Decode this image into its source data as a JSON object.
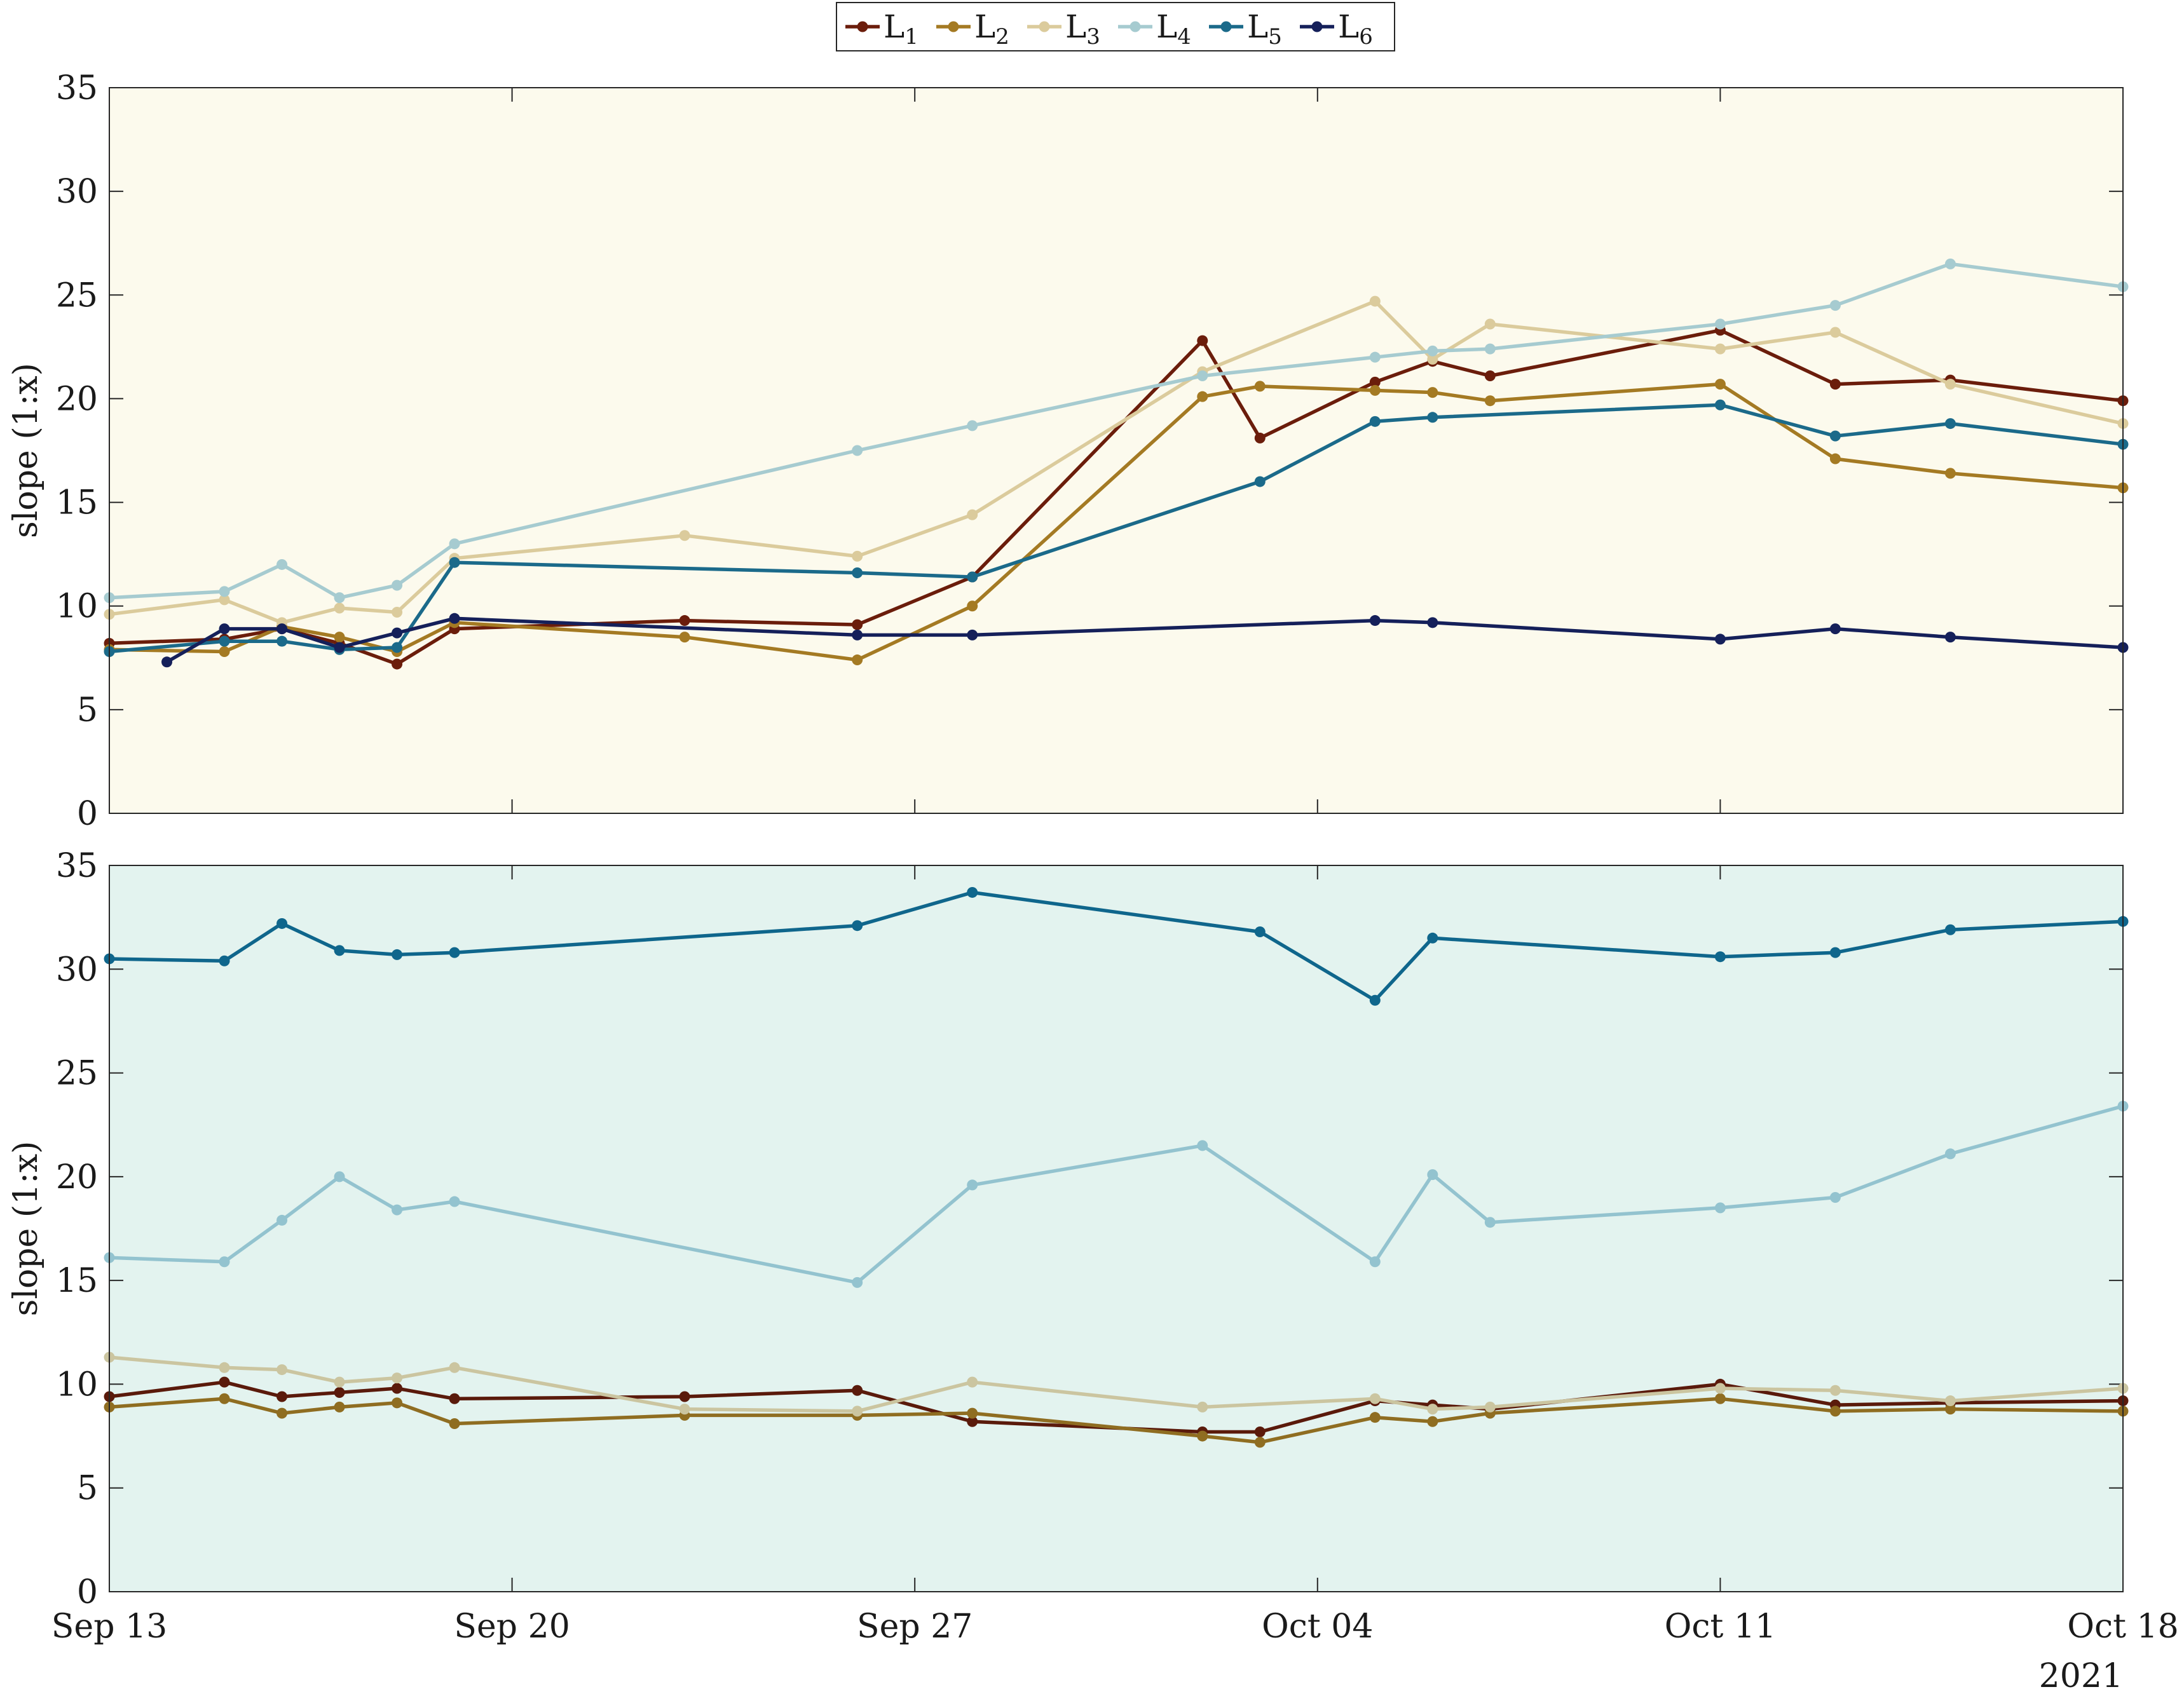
{
  "legend": {
    "entries": [
      {
        "label": "L",
        "sub": "1",
        "color": "#6b1d0b"
      },
      {
        "label": "L",
        "sub": "2",
        "color": "#a47a23"
      },
      {
        "label": "L",
        "sub": "3",
        "color": "#dbcb9c"
      },
      {
        "label": "L",
        "sub": "4",
        "color": "#a6cbd0"
      },
      {
        "label": "L",
        "sub": "5",
        "color": "#1b6a8a"
      },
      {
        "label": "L",
        "sub": "6",
        "color": "#15205a"
      }
    ]
  },
  "chart_data": [
    {
      "type": "line",
      "title": "",
      "xlabel": "",
      "ylabel": "slope (1:x)",
      "background": "#fcfaed",
      "xlim": [
        "2021-09-13",
        "2021-10-18"
      ],
      "ylim": [
        0,
        35
      ],
      "yticks": [
        0,
        5,
        10,
        15,
        20,
        25,
        30,
        35
      ],
      "grid": false,
      "legend_position": "top-center",
      "series": [
        {
          "name": "L1",
          "color": "#6b1d0b",
          "points": [
            [
              "2021-09-13",
              8.2
            ],
            [
              "2021-09-15",
              8.4
            ],
            [
              "2021-09-16",
              8.9
            ],
            [
              "2021-09-17",
              8.2
            ],
            [
              "2021-09-18",
              7.2
            ],
            [
              "2021-09-19",
              8.9
            ],
            [
              "2021-09-23",
              9.3
            ],
            [
              "2021-09-26",
              9.1
            ],
            [
              "2021-09-28",
              11.4
            ],
            [
              "2021-10-02",
              22.8
            ],
            [
              "2021-10-03",
              18.1
            ],
            [
              "2021-10-05",
              20.8
            ],
            [
              "2021-10-06",
              21.8
            ],
            [
              "2021-10-07",
              21.1
            ],
            [
              "2021-10-11",
              23.3
            ],
            [
              "2021-10-13",
              20.7
            ],
            [
              "2021-10-15",
              20.9
            ],
            [
              "2021-10-18",
              19.9
            ]
          ]
        },
        {
          "name": "L2",
          "color": "#a47a23",
          "points": [
            [
              "2021-09-13",
              7.9
            ],
            [
              "2021-09-15",
              7.8
            ],
            [
              "2021-09-16",
              9.0
            ],
            [
              "2021-09-17",
              8.5
            ],
            [
              "2021-09-18",
              7.8
            ],
            [
              "2021-09-19",
              9.2
            ],
            [
              "2021-09-23",
              8.5
            ],
            [
              "2021-09-26",
              7.4
            ],
            [
              "2021-09-28",
              10.0
            ],
            [
              "2021-10-02",
              20.1
            ],
            [
              "2021-10-03",
              20.6
            ],
            [
              "2021-10-05",
              20.4
            ],
            [
              "2021-10-06",
              20.3
            ],
            [
              "2021-10-07",
              19.9
            ],
            [
              "2021-10-11",
              20.7
            ],
            [
              "2021-10-13",
              17.1
            ],
            [
              "2021-10-15",
              16.4
            ],
            [
              "2021-10-18",
              15.7
            ]
          ]
        },
        {
          "name": "L3",
          "color": "#dbcb9c",
          "points": [
            [
              "2021-09-13",
              9.6
            ],
            [
              "2021-09-15",
              10.3
            ],
            [
              "2021-09-16",
              9.2
            ],
            [
              "2021-09-17",
              9.9
            ],
            [
              "2021-09-18",
              9.7
            ],
            [
              "2021-09-19",
              12.3
            ],
            [
              "2021-09-23",
              13.4
            ],
            [
              "2021-09-26",
              12.4
            ],
            [
              "2021-09-28",
              14.4
            ],
            [
              "2021-10-02",
              21.3
            ],
            [
              "2021-10-05",
              24.7
            ],
            [
              "2021-10-06",
              21.9
            ],
            [
              "2021-10-07",
              23.6
            ],
            [
              "2021-10-11",
              22.4
            ],
            [
              "2021-10-13",
              23.2
            ],
            [
              "2021-10-15",
              20.7
            ],
            [
              "2021-10-18",
              18.8
            ]
          ]
        },
        {
          "name": "L4",
          "color": "#a6cbd0",
          "points": [
            [
              "2021-09-13",
              10.4
            ],
            [
              "2021-09-15",
              10.7
            ],
            [
              "2021-09-16",
              12.0
            ],
            [
              "2021-09-17",
              10.4
            ],
            [
              "2021-09-18",
              11.0
            ],
            [
              "2021-09-19",
              13.0
            ],
            [
              "2021-09-26",
              17.5
            ],
            [
              "2021-09-28",
              18.7
            ],
            [
              "2021-10-02",
              21.1
            ],
            [
              "2021-10-05",
              22.0
            ],
            [
              "2021-10-06",
              22.3
            ],
            [
              "2021-10-07",
              22.4
            ],
            [
              "2021-10-11",
              23.6
            ],
            [
              "2021-10-13",
              24.5
            ],
            [
              "2021-10-15",
              26.5
            ],
            [
              "2021-10-18",
              25.4
            ]
          ]
        },
        {
          "name": "L5",
          "color": "#1b6a8a",
          "points": [
            [
              "2021-09-13",
              7.8
            ],
            [
              "2021-09-15",
              8.3
            ],
            [
              "2021-09-16",
              8.3
            ],
            [
              "2021-09-17",
              7.9
            ],
            [
              "2021-09-18",
              8.0
            ],
            [
              "2021-09-19",
              12.1
            ],
            [
              "2021-09-26",
              11.6
            ],
            [
              "2021-09-28",
              11.4
            ],
            [
              "2021-10-03",
              16.0
            ],
            [
              "2021-10-05",
              18.9
            ],
            [
              "2021-10-06",
              19.1
            ],
            [
              "2021-10-11",
              19.7
            ],
            [
              "2021-10-13",
              18.2
            ],
            [
              "2021-10-15",
              18.8
            ],
            [
              "2021-10-18",
              17.8
            ]
          ]
        },
        {
          "name": "L6",
          "color": "#15205a",
          "points": [
            [
              "2021-09-14",
              7.3
            ],
            [
              "2021-09-15",
              8.9
            ],
            [
              "2021-09-16",
              8.9
            ],
            [
              "2021-09-17",
              8.0
            ],
            [
              "2021-09-18",
              8.7
            ],
            [
              "2021-09-19",
              9.4
            ],
            [
              "2021-09-26",
              8.6
            ],
            [
              "2021-09-28",
              8.6
            ],
            [
              "2021-10-05",
              9.3
            ],
            [
              "2021-10-06",
              9.2
            ],
            [
              "2021-10-11",
              8.4
            ],
            [
              "2021-10-13",
              8.9
            ],
            [
              "2021-10-15",
              8.5
            ],
            [
              "2021-10-18",
              8.0
            ]
          ]
        }
      ]
    },
    {
      "type": "line",
      "title": "",
      "xlabel": "",
      "ylabel": "slope (1:x)",
      "background": "#e3f3ef",
      "xlim": [
        "2021-09-13",
        "2021-10-18"
      ],
      "ylim": [
        0,
        35
      ],
      "yticks": [
        0,
        5,
        10,
        15,
        20,
        25,
        30,
        35
      ],
      "xticks": [
        "Sep 13",
        "Sep 20",
        "Sep 27",
        "Oct 04",
        "Oct 11",
        "Oct 18"
      ],
      "xtick_dates": [
        "2021-09-13",
        "2021-09-20",
        "2021-09-27",
        "2021-10-04",
        "2021-10-11",
        "2021-10-18"
      ],
      "xaxis_secondary_label": "2021",
      "grid": false,
      "series": [
        {
          "name": "L1",
          "color": "#5a1a0b",
          "points": [
            [
              "2021-09-13",
              9.4
            ],
            [
              "2021-09-15",
              10.1
            ],
            [
              "2021-09-16",
              9.4
            ],
            [
              "2021-09-17",
              9.6
            ],
            [
              "2021-09-18",
              9.8
            ],
            [
              "2021-09-19",
              9.3
            ],
            [
              "2021-09-23",
              9.4
            ],
            [
              "2021-09-26",
              9.7
            ],
            [
              "2021-09-28",
              8.2
            ],
            [
              "2021-10-02",
              7.7
            ],
            [
              "2021-10-03",
              7.7
            ],
            [
              "2021-10-05",
              9.2
            ],
            [
              "2021-10-06",
              9.0
            ],
            [
              "2021-10-07",
              8.8
            ],
            [
              "2021-10-11",
              10.0
            ],
            [
              "2021-10-13",
              9.0
            ],
            [
              "2021-10-15",
              9.1
            ],
            [
              "2021-10-18",
              9.2
            ]
          ]
        },
        {
          "name": "L2",
          "color": "#8f6d21",
          "points": [
            [
              "2021-09-13",
              8.9
            ],
            [
              "2021-09-15",
              9.3
            ],
            [
              "2021-09-16",
              8.6
            ],
            [
              "2021-09-17",
              8.9
            ],
            [
              "2021-09-18",
              9.1
            ],
            [
              "2021-09-19",
              8.1
            ],
            [
              "2021-09-23",
              8.5
            ],
            [
              "2021-09-26",
              8.5
            ],
            [
              "2021-09-28",
              8.6
            ],
            [
              "2021-10-02",
              7.5
            ],
            [
              "2021-10-03",
              7.2
            ],
            [
              "2021-10-05",
              8.4
            ],
            [
              "2021-10-06",
              8.2
            ],
            [
              "2021-10-07",
              8.6
            ],
            [
              "2021-10-11",
              9.3
            ],
            [
              "2021-10-13",
              8.7
            ],
            [
              "2021-10-15",
              8.8
            ],
            [
              "2021-10-18",
              8.7
            ]
          ]
        },
        {
          "name": "L3",
          "color": "#cbc5a0",
          "points": [
            [
              "2021-09-13",
              11.3
            ],
            [
              "2021-09-15",
              10.8
            ],
            [
              "2021-09-16",
              10.7
            ],
            [
              "2021-09-17",
              10.1
            ],
            [
              "2021-09-18",
              10.3
            ],
            [
              "2021-09-19",
              10.8
            ],
            [
              "2021-09-23",
              8.8
            ],
            [
              "2021-09-26",
              8.7
            ],
            [
              "2021-09-28",
              10.1
            ],
            [
              "2021-10-02",
              8.9
            ],
            [
              "2021-10-05",
              9.3
            ],
            [
              "2021-10-06",
              8.8
            ],
            [
              "2021-10-07",
              8.9
            ],
            [
              "2021-10-11",
              9.8
            ],
            [
              "2021-10-13",
              9.7
            ],
            [
              "2021-10-15",
              9.2
            ],
            [
              "2021-10-18",
              9.8
            ]
          ]
        },
        {
          "name": "L4",
          "color": "#93c3cf",
          "points": [
            [
              "2021-09-13",
              16.1
            ],
            [
              "2021-09-15",
              15.9
            ],
            [
              "2021-09-16",
              17.9
            ],
            [
              "2021-09-17",
              20.0
            ],
            [
              "2021-09-18",
              18.4
            ],
            [
              "2021-09-19",
              18.8
            ],
            [
              "2021-09-26",
              14.9
            ],
            [
              "2021-09-28",
              19.6
            ],
            [
              "2021-10-02",
              21.5
            ],
            [
              "2021-10-05",
              15.9
            ],
            [
              "2021-10-06",
              20.1
            ],
            [
              "2021-10-07",
              17.8
            ],
            [
              "2021-10-11",
              18.5
            ],
            [
              "2021-10-13",
              19.0
            ],
            [
              "2021-10-15",
              21.1
            ],
            [
              "2021-10-18",
              23.4
            ]
          ]
        },
        {
          "name": "L5",
          "color": "#0f668c",
          "points": [
            [
              "2021-09-13",
              30.5
            ],
            [
              "2021-09-15",
              30.4
            ],
            [
              "2021-09-16",
              32.2
            ],
            [
              "2021-09-17",
              30.9
            ],
            [
              "2021-09-18",
              30.7
            ],
            [
              "2021-09-19",
              30.8
            ],
            [
              "2021-09-26",
              32.1
            ],
            [
              "2021-09-28",
              33.7
            ],
            [
              "2021-10-03",
              31.8
            ],
            [
              "2021-10-05",
              28.5
            ],
            [
              "2021-10-06",
              31.5
            ],
            [
              "2021-10-11",
              30.6
            ],
            [
              "2021-10-13",
              30.8
            ],
            [
              "2021-10-15",
              31.9
            ],
            [
              "2021-10-18",
              32.3
            ]
          ]
        }
      ]
    }
  ]
}
